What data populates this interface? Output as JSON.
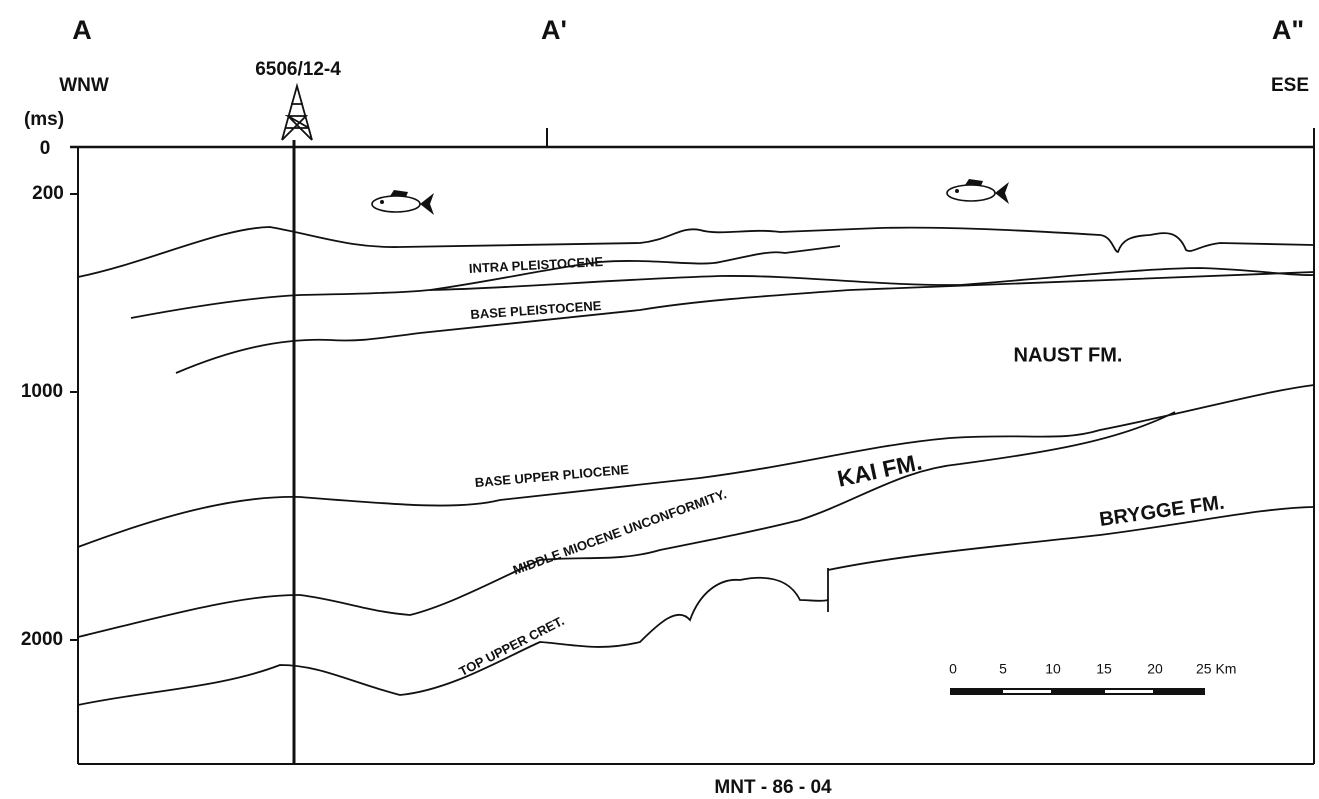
{
  "header": {
    "sections": [
      "A",
      "A'",
      "A\""
    ],
    "directions": [
      "WNW",
      "ESE"
    ],
    "well": "6506/12-4",
    "unit": "(ms)"
  },
  "axis": {
    "ticks": [
      "0",
      "200",
      "1000",
      "2000"
    ]
  },
  "horizons": [
    "INTRA PLEISTOCENE",
    "BASE PLEISTOCENE",
    "BASE UPPER PLIOCENE",
    "MIDDLE MIOCENE UNCONFORMITY.",
    "TOP UPPER CRET."
  ],
  "formations": [
    "NAUST FM.",
    "KAI FM.",
    "BRYGGE FM."
  ],
  "scale": {
    "labels": [
      "0",
      "5",
      "10",
      "15",
      "20",
      "25 Km"
    ]
  },
  "footer": {
    "line_id": "MNT - 86 - 04"
  }
}
